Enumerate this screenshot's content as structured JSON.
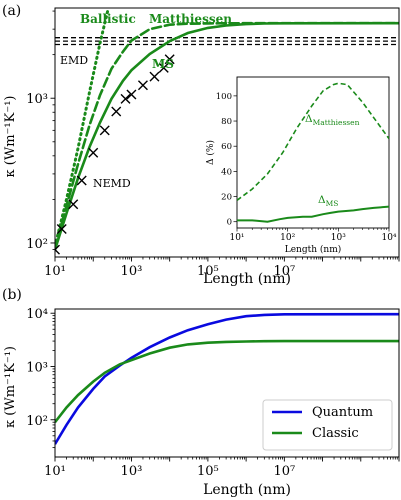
{
  "chart_data": [
    {
      "panel_label": "(a)",
      "type": "line",
      "xlabel": "Length (nm)",
      "ylabel": "κ (Wm⁻¹K⁻¹)",
      "xscale": "log",
      "yscale": "log",
      "xlim": [
        10,
        10000000000
      ],
      "ylim": [
        80,
        4200
      ],
      "x_ticks": [
        {
          "value": 10,
          "label": "10¹"
        },
        {
          "value": 1000,
          "label": "10³"
        },
        {
          "value": 100000,
          "label": "10⁵"
        },
        {
          "value": 10000000,
          "label": "10⁷"
        }
      ],
      "y_ticks": [
        {
          "value": 100,
          "label": "10²"
        },
        {
          "value": 1000,
          "label": "10³"
        }
      ],
      "grid": false,
      "color": "#1a8a1a",
      "series": [
        {
          "name": "Ballistic",
          "style": "dotted",
          "x": [
            10,
            20,
            40,
            80,
            150,
            250
          ],
          "y": [
            95,
            200,
            450,
            1100,
            2400,
            4200
          ]
        },
        {
          "name": "Matthiessen",
          "style": "dashed",
          "x": [
            10,
            20,
            40,
            80,
            150,
            300,
            600,
            1000,
            3000,
            10000,
            30000,
            100000,
            1000000,
            10000000000
          ],
          "y": [
            92,
            180,
            350,
            650,
            1050,
            1600,
            2100,
            2500,
            3000,
            3220,
            3270,
            3290,
            3300,
            3300
          ]
        },
        {
          "name": "MS",
          "style": "solid",
          "x": [
            10,
            20,
            40,
            80,
            150,
            300,
            600,
            1000,
            3000,
            10000,
            30000,
            100000,
            300000,
            1000000,
            3000000,
            10000000,
            10000000000
          ],
          "y": [
            90,
            160,
            280,
            460,
            680,
            990,
            1320,
            1560,
            2020,
            2480,
            2820,
            3060,
            3180,
            3250,
            3280,
            3295,
            3300
          ]
        },
        {
          "name": "NEMD",
          "style": "markers",
          "x": [
            10,
            15,
            30,
            50,
            100,
            200,
            400,
            700,
            1000,
            2000,
            4000,
            7000,
            10000
          ],
          "y": [
            90,
            125,
            185,
            270,
            420,
            600,
            810,
            990,
            1060,
            1230,
            1410,
            1620,
            1860
          ]
        }
      ],
      "reference_lines": [
        {
          "name": "EMD",
          "style": "dashed",
          "values": [
            2350,
            2480,
            2620
          ]
        }
      ],
      "annotations": [
        "Ballistic",
        "Matthiessen",
        "MS",
        "NEMD",
        "EMD"
      ],
      "inset": {
        "type": "line",
        "xlabel": "Length (nm)",
        "ylabel": "Δ (%)",
        "xscale": "log",
        "xlim": [
          10,
          10000
        ],
        "ylim": [
          -5,
          115
        ],
        "x_ticks": [
          {
            "value": 10,
            "label": "10¹"
          },
          {
            "value": 100,
            "label": "10²"
          },
          {
            "value": 1000,
            "label": "10³"
          },
          {
            "value": 10000,
            "label": "10⁴"
          }
        ],
        "y_ticks": [
          {
            "value": 0,
            "label": "0"
          },
          {
            "value": 20,
            "label": "20"
          },
          {
            "value": 40,
            "label": "40"
          },
          {
            "value": 60,
            "label": "60"
          },
          {
            "value": 80,
            "label": "80"
          },
          {
            "value": 100,
            "label": "100"
          }
        ],
        "series": [
          {
            "name": "Δ_Matthiessen",
            "style": "dashed",
            "x": [
              10,
              20,
              40,
              80,
              150,
              300,
              500,
              800,
              1000,
              1500,
              3000,
              10000
            ],
            "y": [
              17,
              26,
              38,
              55,
              74,
              92,
              104,
              109,
              110,
              109,
              95,
              66
            ]
          },
          {
            "name": "Δ_MS",
            "style": "solid",
            "x": [
              10,
              20,
              40,
              70,
              100,
              200,
              300,
              500,
              700,
              1000,
              2000,
              3000,
              5000,
              10000
            ],
            "y": [
              1,
              1,
              0,
              2,
              3,
              4,
              4,
              6,
              7,
              8,
              9,
              10,
              11,
              12
            ]
          }
        ],
        "labels": {
          "matthiessen_main": "Δ",
          "matthiessen_sub": "Matthiessen",
          "ms_main": "Δ",
          "ms_sub": "MS"
        }
      }
    },
    {
      "panel_label": "(b)",
      "type": "line",
      "xlabel": "Length (nm)",
      "ylabel": "κ (Wm⁻¹K⁻¹)",
      "xscale": "log",
      "yscale": "log",
      "xlim": [
        10,
        10000000000
      ],
      "ylim": [
        20,
        12000
      ],
      "x_ticks": [
        {
          "value": 10,
          "label": "10¹"
        },
        {
          "value": 1000,
          "label": "10³"
        },
        {
          "value": 100000,
          "label": "10⁵"
        },
        {
          "value": 10000000,
          "label": "10⁷"
        }
      ],
      "y_ticks": [
        {
          "value": 100,
          "label": "10²"
        },
        {
          "value": 1000,
          "label": "10³"
        },
        {
          "value": 10000,
          "label": "10⁴"
        }
      ],
      "grid": false,
      "legend": "bottom-right",
      "series": [
        {
          "name": "Quantum",
          "color": "#0a0adf",
          "x": [
            10,
            20,
            40,
            100,
            200,
            500,
            1000,
            3000,
            10000,
            30000,
            100000,
            300000,
            1000000,
            3000000,
            10000000,
            10000000000
          ],
          "y": [
            35,
            80,
            170,
            380,
            650,
            1050,
            1450,
            2300,
            3500,
            4800,
            6200,
            7600,
            8800,
            9300,
            9550,
            9600
          ]
        },
        {
          "name": "Classic",
          "color": "#1a8a1a",
          "x": [
            10,
            20,
            40,
            100,
            200,
            500,
            1000,
            3000,
            10000,
            30000,
            100000,
            300000,
            1000000,
            3000000,
            10000000,
            10000000000
          ],
          "y": [
            90,
            170,
            290,
            520,
            760,
            1100,
            1320,
            1750,
            2250,
            2600,
            2800,
            2900,
            2950,
            2980,
            3000,
            3000
          ]
        }
      ]
    }
  ]
}
